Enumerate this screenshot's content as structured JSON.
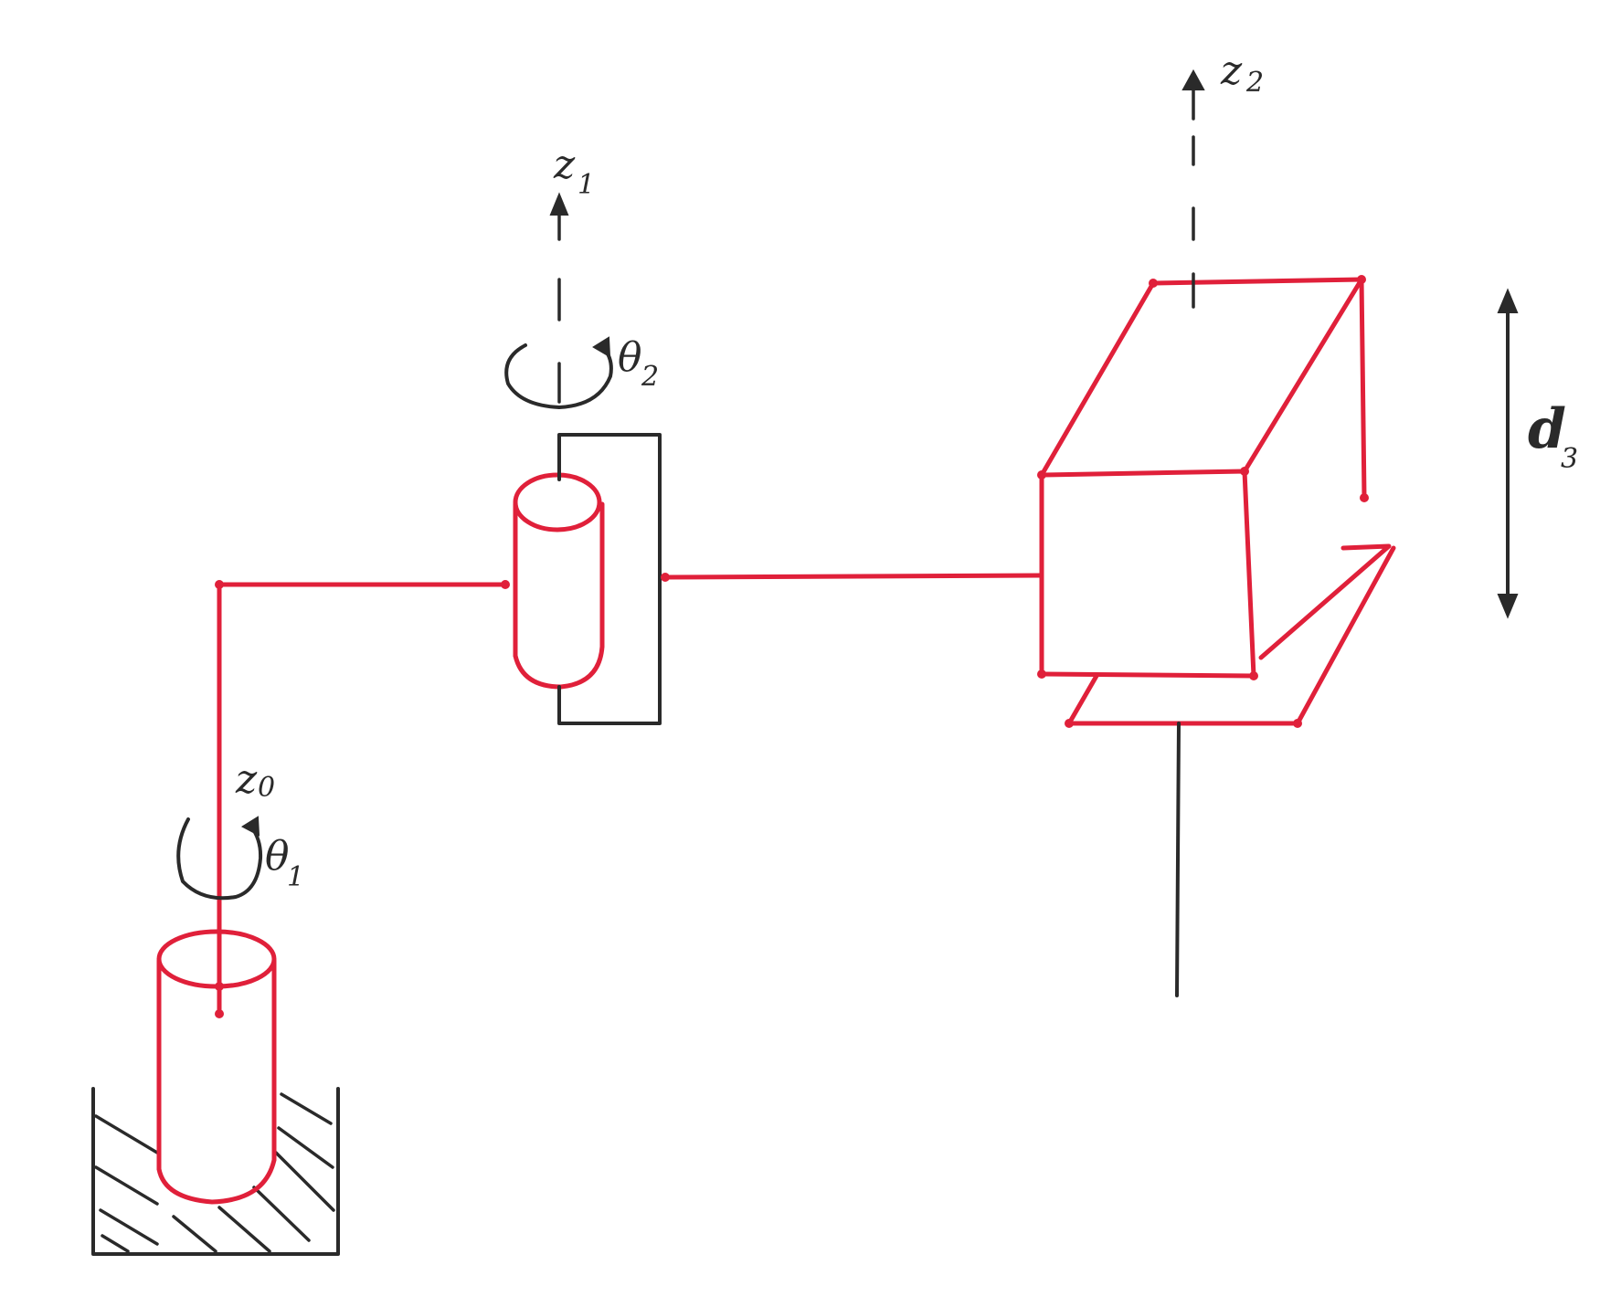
{
  "diagram": {
    "type": "robot-manipulator-kinematic-sketch",
    "labels": {
      "z0": {
        "main": "z",
        "sub": "0"
      },
      "z1": {
        "main": "z",
        "sub": "1"
      },
      "z2": {
        "main": "z",
        "sub": "2"
      },
      "theta1": {
        "main": "θ",
        "sub": "1"
      },
      "theta2": {
        "main": "θ",
        "sub": "2"
      },
      "d3": {
        "main": "d",
        "sub": "3"
      }
    },
    "colors": {
      "links": "#e0203a",
      "annotations": "#2a2a2a",
      "background": "#ffffff"
    }
  }
}
